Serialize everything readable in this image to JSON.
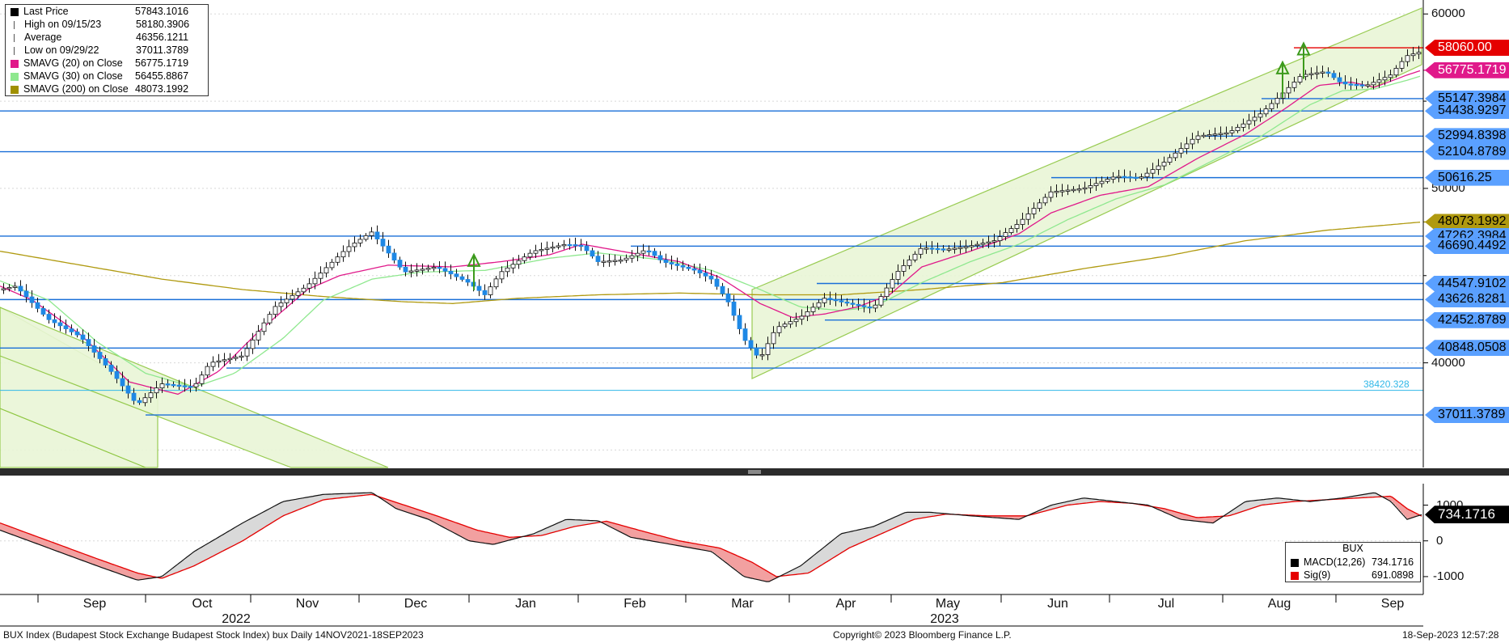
{
  "chart_data": {
    "type": "candlestick",
    "title": "BUX Index (Budapest Stock Exchange Budapest Stock Index)  bux  Daily 14NOV2021-18SEP2023",
    "copyright": "Copyright© 2023 Bloomberg Finance L.P.",
    "timestamp": "18-Sep-2023 12:57:28",
    "ylim": [
      34000,
      60800
    ],
    "y_ticks": [
      "60000",
      "50000",
      "40000"
    ],
    "x_ticks": [
      "Sep",
      "Oct",
      "Nov",
      "Dec",
      "Jan",
      "Feb",
      "Mar",
      "Apr",
      "May",
      "Jun",
      "Jul",
      "Aug",
      "Sep"
    ],
    "x_years": [
      {
        "label": "2022",
        "after_month": 1
      },
      {
        "label": "2023",
        "after_month": 7
      }
    ],
    "legend": [
      {
        "name": "Last Price",
        "value": "57843.1016",
        "color": "#000000",
        "kind": "square"
      },
      {
        "name": "High on 09/15/23",
        "value": "58180.3906",
        "color": "#555555",
        "kind": "high"
      },
      {
        "name": "Average",
        "value": "46356.1211",
        "color": "#555555",
        "kind": "avg"
      },
      {
        "name": "Low on 09/29/22",
        "value": "37011.3789",
        "color": "#555555",
        "kind": "low"
      },
      {
        "name": "SMAVG (20)  on Close",
        "value": "56775.1719",
        "color": "#e0198a",
        "kind": "square"
      },
      {
        "name": "SMAVG (30)  on Close",
        "value": "56455.8867",
        "color": "#8fe88f",
        "kind": "square"
      },
      {
        "name": "SMAVG (200)  on Close",
        "value": "48073.1992",
        "color": "#a09000",
        "kind": "square"
      }
    ],
    "levels": [
      {
        "label": "58060.00",
        "value": 58060,
        "bg": "#e50000",
        "fg": "#ffffff",
        "color": "#e50000",
        "start": 1600
      },
      {
        "label": "56775.1719",
        "value": 56775.1719,
        "bg": "#e0198a",
        "fg": "#ffffff",
        "color": "#e0198a",
        "start": 1800
      },
      {
        "label": "55147.3984",
        "value": 55147.3984,
        "bg": "#5aa0ff",
        "fg": "#000000",
        "color": "#1a6fd8",
        "start": 1560
      },
      {
        "label": "54438.9297",
        "value": 54438.9297,
        "bg": "#5aa0ff",
        "fg": "#000000",
        "color": "#1a6fd8",
        "start": 0
      },
      {
        "label": "52994.8398",
        "value": 52994.8398,
        "bg": "#5aa0ff",
        "fg": "#000000",
        "color": "#1a6fd8",
        "start": 1490
      },
      {
        "label": "52104.8789",
        "value": 52104.8789,
        "bg": "#5aa0ff",
        "fg": "#000000",
        "color": "#1a6fd8",
        "start": 0
      },
      {
        "label": "50616.25",
        "value": 50616.25,
        "bg": "#5aa0ff",
        "fg": "#000000",
        "color": "#1a6fd8",
        "start": 1300
      },
      {
        "label": "48073.1992",
        "value": 48073.1992,
        "bg": "#b09a10",
        "fg": "#000000",
        "color": "#a09000",
        "start": 1800
      },
      {
        "label": "47262.3984",
        "value": 47262.3984,
        "bg": "#5aa0ff",
        "fg": "#000000",
        "color": "#1a6fd8",
        "start": 0
      },
      {
        "label": "46690.4492",
        "value": 46690.4492,
        "bg": "#5aa0ff",
        "fg": "#000000",
        "color": "#1a6fd8",
        "start": 780
      },
      {
        "label": "44547.9102",
        "value": 44547.9102,
        "bg": "#5aa0ff",
        "fg": "#000000",
        "color": "#1a6fd8",
        "start": 1010
      },
      {
        "label": "43626.8281",
        "value": 43626.8281,
        "bg": "#5aa0ff",
        "fg": "#000000",
        "color": "#1a6fd8",
        "start": 0
      },
      {
        "label": "42452.8789",
        "value": 42452.8789,
        "bg": "#5aa0ff",
        "fg": "#000000",
        "color": "#1a6fd8",
        "start": 1020
      },
      {
        "label": "40848.0508",
        "value": 40848.0508,
        "bg": "#5aa0ff",
        "fg": "#000000",
        "color": "#1a6fd8",
        "start": 0
      },
      {
        "label": "",
        "value": 39700,
        "bg": "",
        "fg": "",
        "color": "#1a6fd8",
        "start": 280
      },
      {
        "label": "38420.328",
        "value": 38420.328,
        "bg": "",
        "fg": "#30b8e8",
        "color": "#30b8e8",
        "start": 0
      },
      {
        "label": "37011.3789",
        "value": 37011.3789,
        "bg": "#5aa0ff",
        "fg": "#000000",
        "color": "#1a6fd8",
        "start": 180
      }
    ],
    "price_anchors": [
      [
        0,
        44200
      ],
      [
        20,
        44400
      ],
      [
        60,
        42500
      ],
      [
        100,
        41500
      ],
      [
        140,
        39400
      ],
      [
        170,
        37600
      ],
      [
        200,
        38800
      ],
      [
        240,
        38600
      ],
      [
        260,
        40000
      ],
      [
        300,
        40400
      ],
      [
        340,
        43200
      ],
      [
        380,
        44400
      ],
      [
        430,
        46600
      ],
      [
        460,
        47500
      ],
      [
        500,
        45200
      ],
      [
        540,
        45500
      ],
      [
        580,
        44600
      ],
      [
        600,
        43900
      ],
      [
        620,
        45200
      ],
      [
        660,
        46400
      ],
      [
        700,
        46800
      ],
      [
        720,
        46700
      ],
      [
        740,
        45800
      ],
      [
        770,
        45900
      ],
      [
        800,
        46500
      ],
      [
        820,
        45800
      ],
      [
        860,
        45300
      ],
      [
        880,
        44800
      ],
      [
        900,
        43600
      ],
      [
        920,
        41400
      ],
      [
        940,
        40200
      ],
      [
        960,
        42000
      ],
      [
        990,
        42600
      ],
      [
        1020,
        43700
      ],
      [
        1060,
        43300
      ],
      [
        1080,
        43100
      ],
      [
        1110,
        45200
      ],
      [
        1140,
        46600
      ],
      [
        1170,
        46500
      ],
      [
        1200,
        46700
      ],
      [
        1230,
        47000
      ],
      [
        1260,
        48000
      ],
      [
        1300,
        49800
      ],
      [
        1340,
        50000
      ],
      [
        1380,
        50700
      ],
      [
        1410,
        50600
      ],
      [
        1440,
        51500
      ],
      [
        1480,
        53000
      ],
      [
        1520,
        53200
      ],
      [
        1560,
        54300
      ],
      [
        1590,
        55600
      ],
      [
        1610,
        56500
      ],
      [
        1640,
        56700
      ],
      [
        1660,
        56000
      ],
      [
        1690,
        55900
      ],
      [
        1720,
        56500
      ],
      [
        1740,
        57600
      ],
      [
        1758,
        57843
      ]
    ],
    "ma20_anchors": [
      [
        0,
        44400
      ],
      [
        40,
        43600
      ],
      [
        100,
        41600
      ],
      [
        160,
        38900
      ],
      [
        220,
        38200
      ],
      [
        270,
        39500
      ],
      [
        320,
        41800
      ],
      [
        380,
        44200
      ],
      [
        420,
        45000
      ],
      [
        480,
        45600
      ],
      [
        560,
        45500
      ],
      [
        620,
        45800
      ],
      [
        680,
        46200
      ],
      [
        720,
        46800
      ],
      [
        780,
        46300
      ],
      [
        840,
        45800
      ],
      [
        890,
        44900
      ],
      [
        940,
        43400
      ],
      [
        980,
        42600
      ],
      [
        1020,
        42800
      ],
      [
        1060,
        43200
      ],
      [
        1100,
        43900
      ],
      [
        1140,
        45500
      ],
      [
        1200,
        46400
      ],
      [
        1260,
        47400
      ],
      [
        1300,
        48600
      ],
      [
        1360,
        49600
      ],
      [
        1420,
        50100
      ],
      [
        1480,
        51700
      ],
      [
        1540,
        53100
      ],
      [
        1590,
        54600
      ],
      [
        1630,
        55900
      ],
      [
        1670,
        56100
      ],
      [
        1700,
        55800
      ],
      [
        1740,
        56500
      ],
      [
        1758,
        56775
      ]
    ],
    "ma30_anchors": [
      [
        0,
        44700
      ],
      [
        60,
        43600
      ],
      [
        120,
        41200
      ],
      [
        180,
        39400
      ],
      [
        240,
        38600
      ],
      [
        290,
        39400
      ],
      [
        350,
        41400
      ],
      [
        400,
        43600
      ],
      [
        460,
        44800
      ],
      [
        520,
        45200
      ],
      [
        600,
        45300
      ],
      [
        680,
        46000
      ],
      [
        740,
        46300
      ],
      [
        820,
        45900
      ],
      [
        880,
        45300
      ],
      [
        940,
        44200
      ],
      [
        990,
        43200
      ],
      [
        1040,
        43000
      ],
      [
        1080,
        43200
      ],
      [
        1140,
        44600
      ],
      [
        1200,
        45800
      ],
      [
        1260,
        46800
      ],
      [
        1320,
        48200
      ],
      [
        1380,
        49400
      ],
      [
        1440,
        50200
      ],
      [
        1500,
        51600
      ],
      [
        1560,
        53000
      ],
      [
        1620,
        54800
      ],
      [
        1660,
        55600
      ],
      [
        1700,
        55700
      ],
      [
        1740,
        56200
      ],
      [
        1758,
        56455
      ]
    ],
    "ma200_anchors": [
      [
        0,
        46400
      ],
      [
        100,
        45600
      ],
      [
        200,
        44800
      ],
      [
        300,
        44200
      ],
      [
        400,
        43800
      ],
      [
        500,
        43500
      ],
      [
        560,
        43400
      ],
      [
        640,
        43700
      ],
      [
        740,
        43900
      ],
      [
        840,
        44000
      ],
      [
        940,
        43900
      ],
      [
        1040,
        43900
      ],
      [
        1140,
        44200
      ],
      [
        1240,
        44600
      ],
      [
        1340,
        45400
      ],
      [
        1440,
        46100
      ],
      [
        1540,
        47000
      ],
      [
        1640,
        47600
      ],
      [
        1758,
        48073
      ]
    ],
    "macd_ylim": [
      -1500,
      1600
    ],
    "macd_ticks": [
      "1000",
      "0",
      "-1000"
    ],
    "macd_anchors": [
      [
        0,
        300
      ],
      [
        60,
        -200
      ],
      [
        120,
        -700
      ],
      [
        170,
        -1100
      ],
      [
        200,
        -1000
      ],
      [
        240,
        -300
      ],
      [
        300,
        500
      ],
      [
        350,
        1100
      ],
      [
        400,
        1300
      ],
      [
        460,
        1350
      ],
      [
        490,
        900
      ],
      [
        530,
        600
      ],
      [
        580,
        0
      ],
      [
        610,
        -100
      ],
      [
        660,
        200
      ],
      [
        700,
        600
      ],
      [
        740,
        560
      ],
      [
        780,
        100
      ],
      [
        830,
        -100
      ],
      [
        880,
        -300
      ],
      [
        920,
        -1000
      ],
      [
        950,
        -1150
      ],
      [
        990,
        -700
      ],
      [
        1040,
        200
      ],
      [
        1080,
        400
      ],
      [
        1120,
        800
      ],
      [
        1150,
        800
      ],
      [
        1200,
        700
      ],
      [
        1260,
        600
      ],
      [
        1300,
        1000
      ],
      [
        1340,
        1200
      ],
      [
        1380,
        1100
      ],
      [
        1420,
        1000
      ],
      [
        1460,
        600
      ],
      [
        1500,
        500
      ],
      [
        1540,
        1100
      ],
      [
        1580,
        1200
      ],
      [
        1620,
        1100
      ],
      [
        1660,
        1200
      ],
      [
        1700,
        1350
      ],
      [
        1720,
        1100
      ],
      [
        1740,
        600
      ],
      [
        1758,
        734
      ]
    ],
    "signal_anchors": [
      [
        0,
        500
      ],
      [
        60,
        0
      ],
      [
        120,
        -500
      ],
      [
        170,
        -900
      ],
      [
        200,
        -1050
      ],
      [
        240,
        -700
      ],
      [
        300,
        0
      ],
      [
        350,
        700
      ],
      [
        400,
        1150
      ],
      [
        460,
        1300
      ],
      [
        500,
        1000
      ],
      [
        540,
        700
      ],
      [
        590,
        300
      ],
      [
        630,
        100
      ],
      [
        670,
        150
      ],
      [
        710,
        400
      ],
      [
        750,
        550
      ],
      [
        790,
        300
      ],
      [
        840,
        0
      ],
      [
        890,
        -200
      ],
      [
        930,
        -600
      ],
      [
        960,
        -1000
      ],
      [
        1000,
        -900
      ],
      [
        1050,
        -200
      ],
      [
        1090,
        200
      ],
      [
        1130,
        600
      ],
      [
        1170,
        750
      ],
      [
        1220,
        700
      ],
      [
        1270,
        700
      ],
      [
        1320,
        1000
      ],
      [
        1360,
        1100
      ],
      [
        1400,
        1050
      ],
      [
        1440,
        900
      ],
      [
        1480,
        650
      ],
      [
        1520,
        700
      ],
      [
        1560,
        1000
      ],
      [
        1600,
        1100
      ],
      [
        1640,
        1150
      ],
      [
        1680,
        1200
      ],
      [
        1720,
        1250
      ],
      [
        1740,
        900
      ],
      [
        1758,
        691
      ]
    ],
    "macd_badge": "734.1716",
    "macd_legend": {
      "title": "BUX",
      "rows": [
        {
          "name": "MACD(12,26)",
          "value": "734.1716",
          "color": "#000000"
        },
        {
          "name": "Sig(9)",
          "value": "691.0898",
          "color": "#e50000"
        }
      ]
    },
    "arrows_up": [
      586,
      1586,
      1612
    ]
  }
}
